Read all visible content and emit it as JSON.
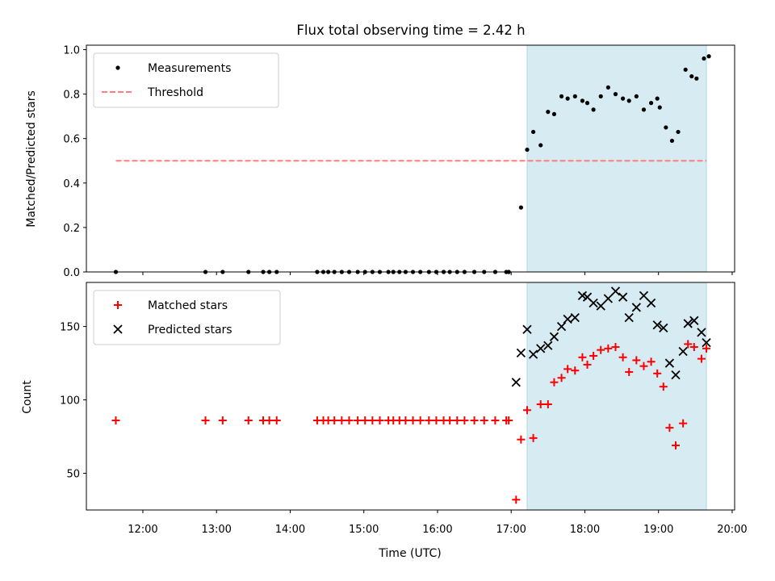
{
  "chart_data": [
    {
      "type": "scatter",
      "title": "Flux total observing time = 2.42 h",
      "ylabel": "Matched/Predicted stars",
      "xlabel": "",
      "ylim": [
        0,
        1.02
      ],
      "xlim": [
        "11:14",
        "20:02"
      ],
      "yticks": [
        "0.0",
        "0.2",
        "0.4",
        "0.6",
        "0.8",
        "1.0"
      ],
      "legend": {
        "placement": "top-left",
        "entries": [
          "Measurements",
          "Threshold"
        ]
      },
      "shaded_span": {
        "x0": "17:13",
        "x1": "19:39",
        "color": "#add8e6"
      },
      "threshold": {
        "name": "Threshold",
        "y": 0.5,
        "x0": "11:38",
        "x1": "19:39",
        "color": "#ff7f7f"
      },
      "series": [
        {
          "name": "Measurements",
          "color": "#000000",
          "x": [
            "11:38",
            "12:51",
            "13:05",
            "13:26",
            "13:38",
            "13:43",
            "13:49",
            "14:22",
            "14:27",
            "14:31",
            "14:36",
            "14:42",
            "14:48",
            "14:55",
            "15:01",
            "15:07",
            "15:13",
            "15:20",
            "15:24",
            "15:29",
            "15:34",
            "15:40",
            "15:46",
            "15:53",
            "15:59",
            "16:05",
            "16:10",
            "16:16",
            "16:22",
            "16:30",
            "16:38",
            "16:47",
            "16:56",
            "16:58",
            "17:08",
            "17:13",
            "17:18",
            "17:24",
            "17:30",
            "17:35",
            "17:41",
            "17:46",
            "17:52",
            "17:58",
            "18:02",
            "18:07",
            "18:13",
            "18:19",
            "18:25",
            "18:31",
            "18:36",
            "18:42",
            "18:48",
            "18:54",
            "18:59",
            "19:01",
            "19:06",
            "19:11",
            "19:16",
            "19:22",
            "19:27",
            "19:31",
            "19:37",
            "19:41"
          ],
          "y": [
            0,
            0,
            0,
            0,
            0,
            0,
            0,
            0,
            0,
            0,
            0,
            0,
            0,
            0,
            0,
            0,
            0,
            0,
            0,
            0,
            0,
            0,
            0,
            0,
            0,
            0,
            0,
            0,
            0,
            0,
            0,
            0,
            0,
            0,
            0.29,
            0.55,
            0.63,
            0.57,
            0.72,
            0.71,
            0.79,
            0.78,
            0.79,
            0.77,
            0.76,
            0.73,
            0.79,
            0.83,
            0.8,
            0.78,
            0.77,
            0.79,
            0.73,
            0.76,
            0.78,
            0.74,
            0.65,
            0.59,
            0.63,
            0.91,
            0.88,
            0.87,
            0.96,
            0.97
          ]
        }
      ]
    },
    {
      "type": "scatter",
      "title": "",
      "ylabel": "Count",
      "xlabel": "Time (UTC)",
      "ylim": [
        25,
        180
      ],
      "xlim": [
        "11:14",
        "20:02"
      ],
      "yticks": [
        "50",
        "100",
        "150"
      ],
      "xticks": [
        "12:00",
        "13:00",
        "14:00",
        "15:00",
        "16:00",
        "17:00",
        "18:00",
        "19:00",
        "20:00"
      ],
      "legend": {
        "placement": "top-left",
        "entries": [
          "Matched stars",
          "Predicted stars"
        ]
      },
      "shaded_span": {
        "x0": "17:13",
        "x1": "19:39",
        "color": "#add8e6"
      },
      "series": [
        {
          "name": "Matched stars",
          "marker": "plus",
          "color": "#ff0000",
          "x": [
            "11:38",
            "12:51",
            "13:05",
            "13:26",
            "13:38",
            "13:43",
            "13:49",
            "14:22",
            "14:27",
            "14:31",
            "14:36",
            "14:42",
            "14:48",
            "14:55",
            "15:01",
            "15:07",
            "15:13",
            "15:20",
            "15:24",
            "15:29",
            "15:34",
            "15:40",
            "15:46",
            "15:53",
            "15:59",
            "16:05",
            "16:10",
            "16:16",
            "16:22",
            "16:30",
            "16:38",
            "16:47",
            "16:56",
            "16:58",
            "17:04",
            "17:08",
            "17:13",
            "17:18",
            "17:24",
            "17:30",
            "17:35",
            "17:41",
            "17:46",
            "17:52",
            "17:58",
            "18:02",
            "18:07",
            "18:13",
            "18:19",
            "18:25",
            "18:31",
            "18:36",
            "18:42",
            "18:48",
            "18:54",
            "18:59",
            "19:04",
            "19:09",
            "19:14",
            "19:20",
            "19:24",
            "19:29",
            "19:35",
            "19:39"
          ],
          "y": [
            86,
            86,
            86,
            86,
            86,
            86,
            86,
            86,
            86,
            86,
            86,
            86,
            86,
            86,
            86,
            86,
            86,
            86,
            86,
            86,
            86,
            86,
            86,
            86,
            86,
            86,
            86,
            86,
            86,
            86,
            86,
            86,
            86,
            86,
            32,
            73,
            93,
            74,
            97,
            97,
            112,
            115,
            121,
            120,
            129,
            124,
            130,
            134,
            135,
            136,
            129,
            119,
            127,
            123,
            126,
            118,
            109,
            81,
            69,
            84,
            138,
            136,
            128,
            135
          ]
        },
        {
          "name": "Predicted stars",
          "marker": "x",
          "color": "#000000",
          "x": [
            "17:04",
            "17:08",
            "17:13",
            "17:18",
            "17:24",
            "17:30",
            "17:35",
            "17:41",
            "17:46",
            "17:52",
            "17:58",
            "18:02",
            "18:07",
            "18:13",
            "18:19",
            "18:25",
            "18:31",
            "18:36",
            "18:42",
            "18:48",
            "18:54",
            "18:59",
            "19:04",
            "19:09",
            "19:14",
            "19:20",
            "19:24",
            "19:29",
            "19:35",
            "19:39"
          ],
          "y": [
            112,
            132,
            148,
            131,
            135,
            137,
            143,
            150,
            155,
            156,
            171,
            170,
            166,
            164,
            169,
            174,
            170,
            156,
            163,
            171,
            166,
            151,
            149,
            125,
            117,
            133,
            152,
            154,
            146,
            139
          ]
        }
      ]
    }
  ]
}
